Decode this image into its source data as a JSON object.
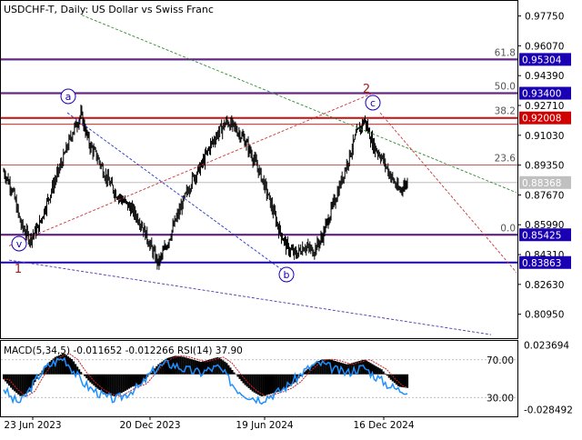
{
  "header": {
    "symbol": "USDCHF-T",
    "timeframe": "Daily",
    "description": "US Dollar vs Swiss Franc"
  },
  "colors": {
    "candle": "#000000",
    "grid": "#b0b0b0",
    "h_line_blue": "#1a00b3",
    "h_line_red": "#d00000",
    "h_line_fib": "#a82828",
    "wave_label_red": "#9c1b1b",
    "wave_label_blue": "#1a00b3",
    "trend_green": "#2e8b2e",
    "trend_red": "#cc3333",
    "trend_blue": "#2233cc",
    "trend_purple": "#5533aa",
    "price_tag_blue": "#1a00b3",
    "price_tag_red": "#d00000",
    "price_tag_grey": "#c0c0c0",
    "macd_hist": "#000000",
    "macd_signal": "#cc2222",
    "rsi": "#1e90ff"
  },
  "chart_data": [
    {
      "type": "candlestick",
      "title": "USDCHF-T, Daily: US Dollar vs Swiss Franc",
      "x_ticks": [
        "23 Jun 2023",
        "20 Dec 2023",
        "19 Jun 2024",
        "16 Dec 2024"
      ],
      "y_ticks": [
        "0.97750",
        "0.96070",
        "0.94390",
        "0.92710",
        "0.91030",
        "0.89350",
        "0.87670",
        "0.85990",
        "0.84310",
        "0.82630",
        "0.80950"
      ],
      "ylim": [
        0.796,
        0.986
      ],
      "close_path": [
        0.89,
        0.88,
        0.86,
        0.852,
        0.858,
        0.872,
        0.885,
        0.898,
        0.912,
        0.922,
        0.905,
        0.897,
        0.886,
        0.878,
        0.873,
        0.868,
        0.861,
        0.849,
        0.838,
        0.849,
        0.862,
        0.874,
        0.886,
        0.893,
        0.904,
        0.912,
        0.918,
        0.914,
        0.908,
        0.898,
        0.887,
        0.873,
        0.858,
        0.847,
        0.843,
        0.848,
        0.845,
        0.852,
        0.866,
        0.88,
        0.895,
        0.91,
        0.919,
        0.905,
        0.898,
        0.888,
        0.879,
        0.884
      ],
      "price_tags": [
        {
          "value": "0.95304",
          "style": "blue"
        },
        {
          "value": "0.93400",
          "style": "blue"
        },
        {
          "value": "0.92008",
          "style": "red"
        },
        {
          "value": "0.88368",
          "style": "grey"
        },
        {
          "value": "0.85425",
          "style": "blue"
        },
        {
          "value": "0.83863",
          "style": "blue"
        }
      ],
      "fib_levels": [
        {
          "label": "61.8",
          "value": 0.95304
        },
        {
          "label": "50.0",
          "value": 0.934
        },
        {
          "label": "38.2",
          "value": 0.92008
        },
        {
          "label": "23.6",
          "value": 0.8935
        },
        {
          "label": "0.0",
          "value": 0.85425
        }
      ],
      "wave_labels": [
        {
          "text": "1",
          "style": "plain",
          "index": 1
        },
        {
          "text": "v",
          "style": "circled",
          "index": 1
        },
        {
          "text": "a",
          "style": "circled",
          "index": 8
        },
        {
          "text": "b",
          "style": "circled",
          "index": 36
        },
        {
          "text": "2",
          "style": "plain",
          "index": 42
        },
        {
          "text": "c",
          "style": "circled",
          "index": 42
        }
      ]
    },
    {
      "type": "macd+rsi",
      "title": "MACD(5,34,5) -0.011652 -0.012266 RSI(14) 37.90",
      "y_ticks_right": [
        "0.023694",
        "-0.028492"
      ],
      "y_ticks_left": [
        "70.00",
        "30.00"
      ],
      "ylim": [
        -0.034,
        0.027
      ],
      "rsi_ylim": [
        10,
        90
      ],
      "macd_values": [
        -0.004,
        -0.012,
        -0.018,
        -0.014,
        -0.002,
        0.008,
        0.014,
        0.017,
        0.012,
        0.002,
        -0.006,
        -0.012,
        -0.016,
        -0.018,
        -0.014,
        -0.01,
        -0.008,
        0.0,
        0.008,
        0.013,
        0.015,
        0.014,
        0.012,
        0.01,
        0.012,
        0.014,
        0.009,
        0.0,
        -0.008,
        -0.014,
        -0.018,
        -0.016,
        -0.014,
        -0.011,
        -0.006,
        0.002,
        0.008,
        0.012,
        0.012,
        0.01,
        0.008,
        0.01,
        0.012,
        0.008,
        0.004,
        -0.004,
        -0.01,
        -0.011
      ],
      "rsi_values": [
        40,
        28,
        25,
        38,
        52,
        62,
        68,
        72,
        60,
        48,
        40,
        35,
        30,
        28,
        32,
        38,
        42,
        55,
        62,
        66,
        64,
        60,
        58,
        56,
        60,
        62,
        52,
        40,
        34,
        30,
        28,
        32,
        36,
        42,
        50,
        58,
        64,
        66,
        62,
        58,
        56,
        60,
        62,
        54,
        48,
        42,
        38,
        38
      ]
    }
  ]
}
